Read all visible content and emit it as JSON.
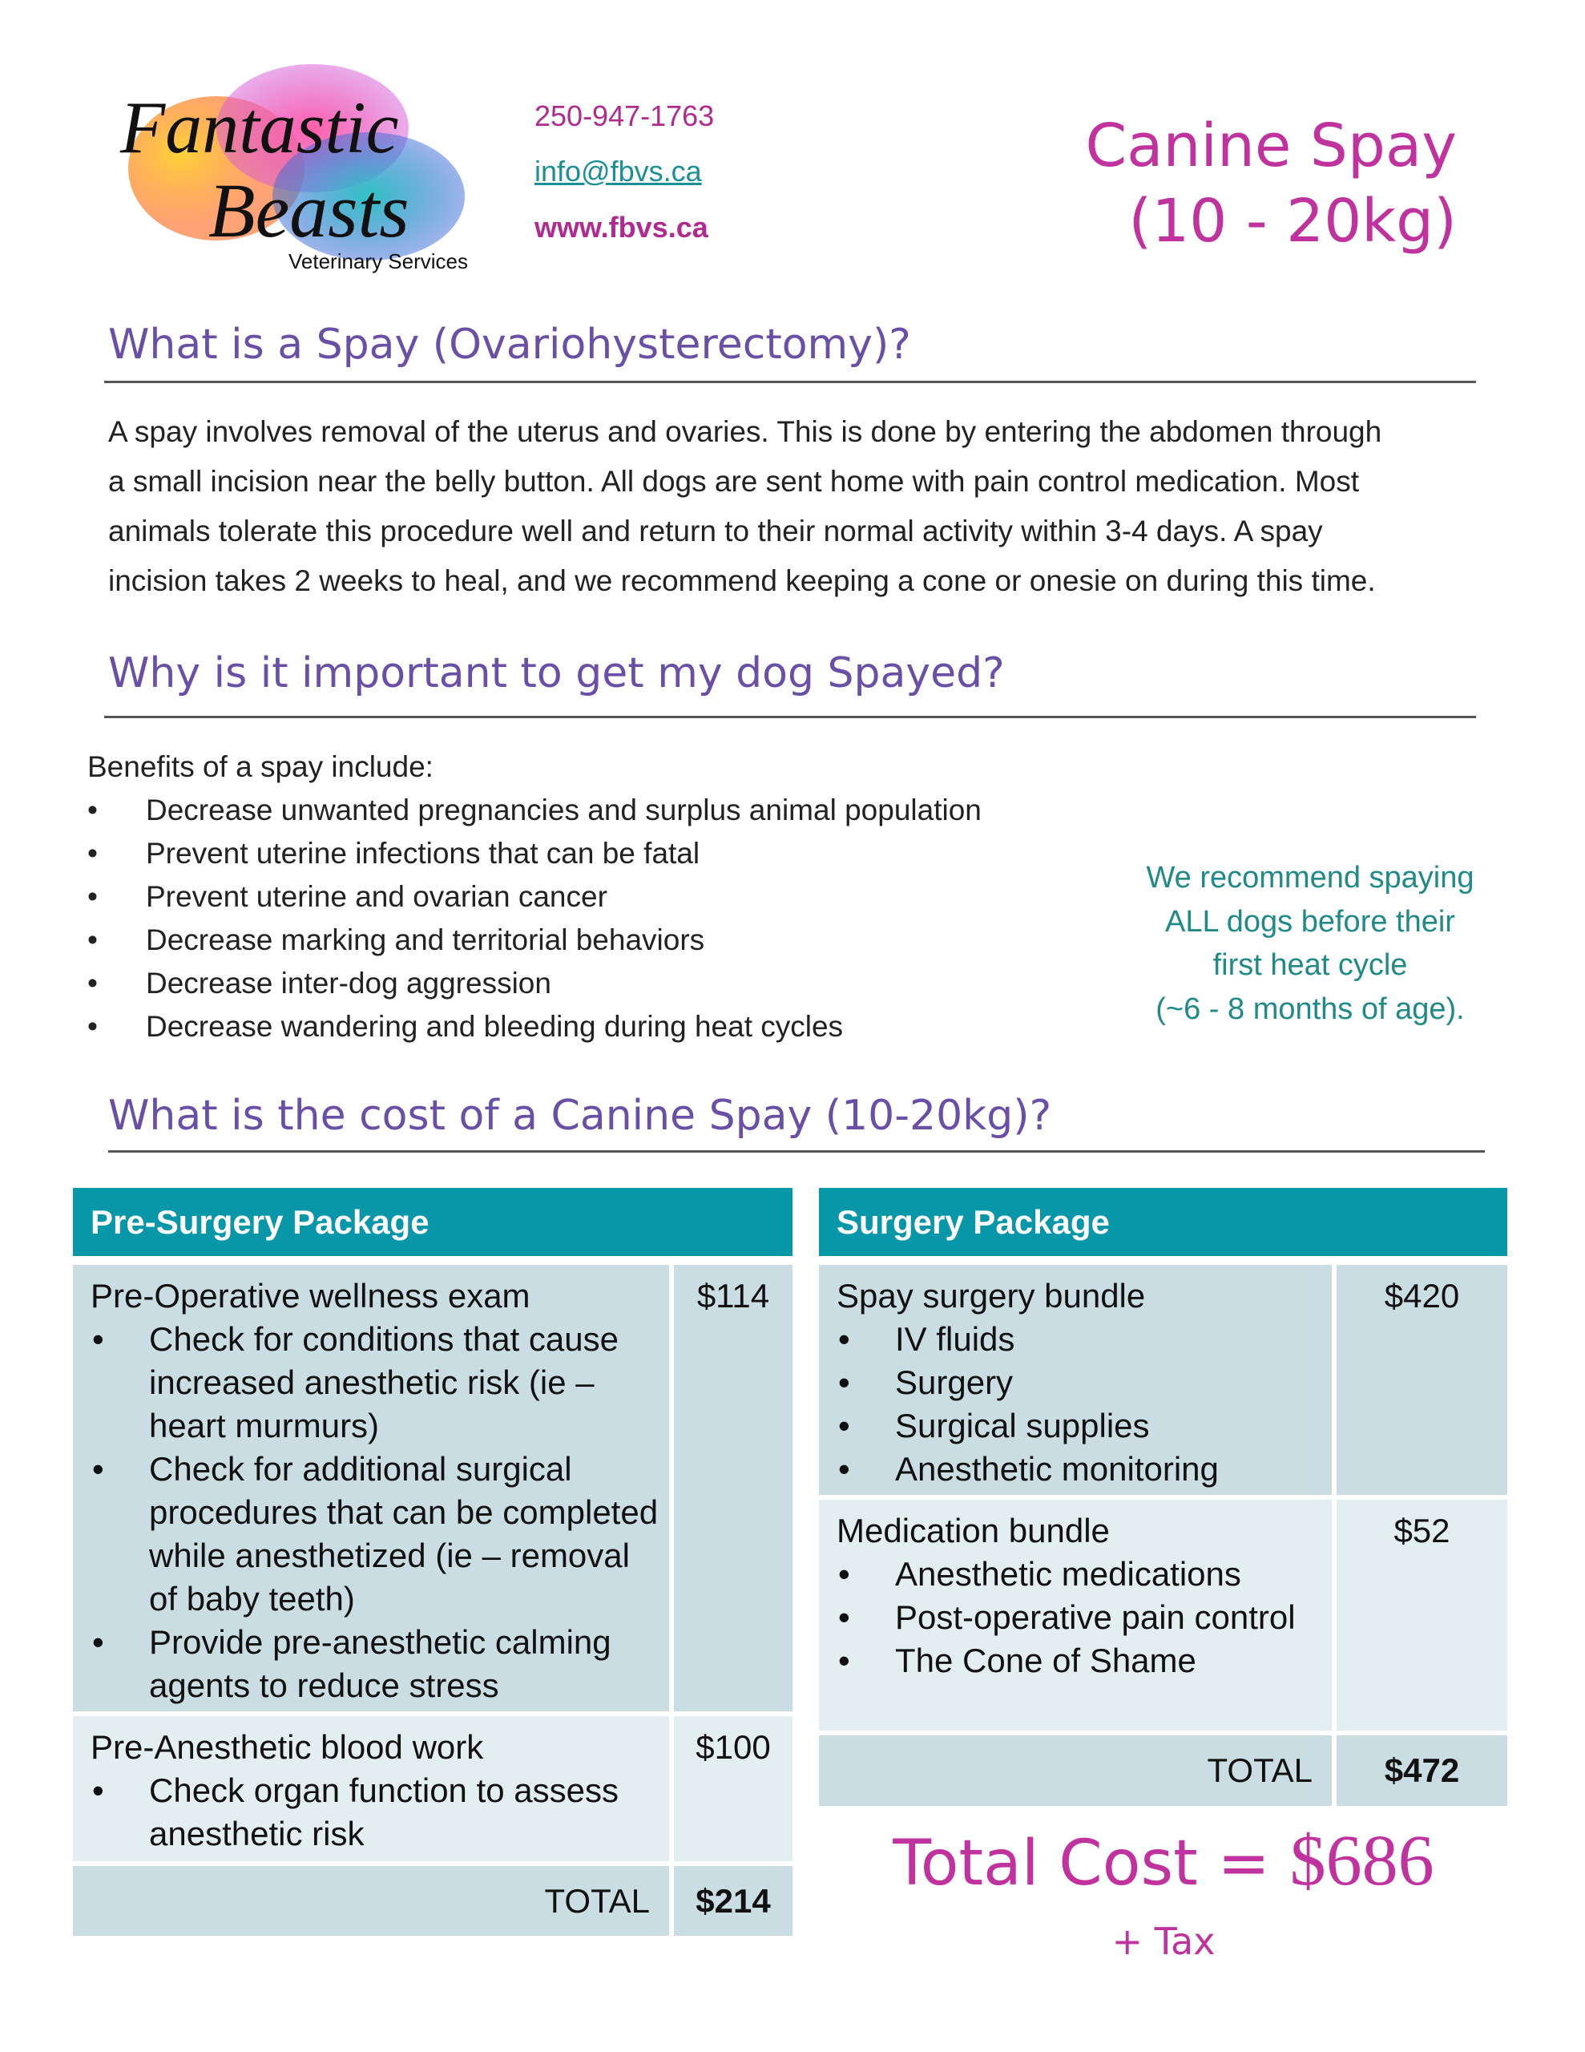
{
  "logo": {
    "line1": "Fantastic",
    "line2": "Beasts",
    "tagline": "Veterinary Services"
  },
  "contact": {
    "phone": "250-947-1763",
    "email": "info@fbvs.ca",
    "website": "www.fbvs.ca"
  },
  "title": {
    "line1": "Canine Spay",
    "line2": "(10 - 20kg)"
  },
  "section1": {
    "heading": "What is a Spay (Ovariohysterectomy)?",
    "lines": [
      "A spay involves removal of the uterus and ovaries. This is done by entering the abdomen through",
      "a small incision near the belly button. All dogs are sent home with pain control medication. Most",
      "animals tolerate this procedure well and return to their normal activity within 3-4 days. A spay",
      "incision takes 2 weeks to heal, and we recommend keeping a cone or onesie on during this time."
    ]
  },
  "section2": {
    "heading": "Why is it important to get my dog Spayed?",
    "intro": "Benefits of a spay include:",
    "bullets": [
      "Decrease unwanted pregnancies and surplus animal population",
      "Prevent uterine infections that can be fatal",
      "Prevent uterine and ovarian cancer",
      "Decrease marking and territorial behaviors",
      "Decrease inter-dog aggression",
      "Decrease wandering and bleeding during heat cycles"
    ],
    "recommendation": [
      "We recommend spaying",
      "ALL dogs before their",
      "first heat cycle",
      "(~6 - 8 months of age)."
    ]
  },
  "section3": {
    "heading": "What is the cost of a Canine Spay (10-20kg)?"
  },
  "pre_surgery": {
    "header": "Pre-Surgery Package",
    "rows": [
      {
        "name": "Pre-Operative wellness exam",
        "price": "$114",
        "bullets": [
          "Check for conditions that cause increased anesthetic risk (ie – heart murmurs)",
          "Check for additional surgical procedures that can be completed while anesthetized (ie – removal of baby teeth)",
          "Provide pre-anesthetic calming agents to reduce stress"
        ]
      },
      {
        "name": "Pre-Anesthetic blood work",
        "price": "$100",
        "bullets": [
          "Check organ function to assess anesthetic risk"
        ]
      }
    ],
    "total_label": "TOTAL",
    "total": "$214"
  },
  "surgery": {
    "header": "Surgery Package",
    "rows": [
      {
        "name": "Spay surgery bundle",
        "price": "$420",
        "bullets": [
          "IV fluids",
          "Surgery",
          "Surgical supplies",
          "Anesthetic monitoring"
        ]
      },
      {
        "name": "Medication bundle",
        "price": "$52",
        "bullets": [
          "Anesthetic medications",
          "Post-operative pain control",
          "The Cone of Shame"
        ]
      }
    ],
    "total_label": "TOTAL",
    "total": "$472"
  },
  "grand_total": {
    "label": "Total Cost = ",
    "amount": "$686",
    "tax": "+ Tax"
  },
  "colors": {
    "magenta": "#c0339f",
    "purple": "#6a4fa6",
    "teal": "#0797a8",
    "green": "#1f8a87"
  }
}
